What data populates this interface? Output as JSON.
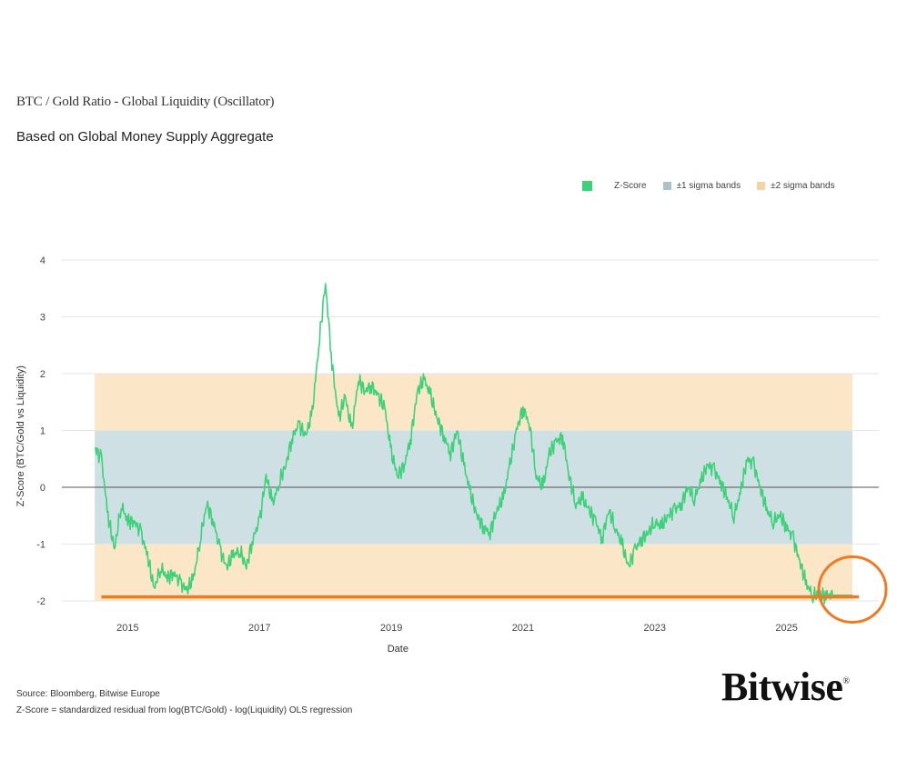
{
  "title": "BTC / Gold Ratio - Global Liquidity (Oscillator)",
  "subtitle": "Based on Global Money Supply Aggregate",
  "legend": {
    "zscore": "Z-Score",
    "sigma1": "±1 sigma bands",
    "sigma2": "±2 sigma bands"
  },
  "footer": {
    "source": "Source: Bloomberg, Bitwise Europe",
    "note": "Z-Score = standardized residual from log(BTC/Gold) - log(Liquidity) OLS regression"
  },
  "logo": {
    "text": "Bitwise",
    "mark": "®"
  },
  "colors": {
    "line": "#3dd17a",
    "band1": "#cfe0e4",
    "band2": "#fbe6c8",
    "highlight": "#f07a22",
    "grid": "#e6e6e6",
    "zero": "#555555"
  },
  "chart_data": {
    "type": "line",
    "title": "BTC / Gold Ratio - Global Liquidity (Oscillator)",
    "xlabel": "Date",
    "ylabel": "Z-Score (BTC/Gold vs Liquidity)",
    "ylim": [
      -2.2,
      4.2
    ],
    "xlim": [
      2014.0,
      2026.4
    ],
    "yticks": [
      4,
      3,
      2,
      1,
      0,
      -1,
      -2
    ],
    "xticks": [
      2015,
      2017,
      2019,
      2021,
      2023,
      2025
    ],
    "bands": {
      "sigma1": [
        -1,
        1
      ],
      "sigma2": [
        -2,
        2
      ],
      "x_range": [
        2014.5,
        2026.0
      ]
    },
    "highlight_line": {
      "y": -1.93,
      "x_range": [
        2014.6,
        2026.1
      ]
    },
    "highlight_circle": {
      "x": 2026.0,
      "y": -1.8
    },
    "series": [
      {
        "name": "Z-Score",
        "x": [
          2014.5,
          2014.6,
          2014.7,
          2014.8,
          2014.9,
          2015.0,
          2015.1,
          2015.2,
          2015.3,
          2015.4,
          2015.5,
          2015.6,
          2015.7,
          2015.8,
          2015.9,
          2016.0,
          2016.1,
          2016.2,
          2016.3,
          2016.4,
          2016.5,
          2016.6,
          2016.7,
          2016.8,
          2016.9,
          2017.0,
          2017.1,
          2017.2,
          2017.3,
          2017.4,
          2017.5,
          2017.6,
          2017.7,
          2017.8,
          2017.9,
          2018.0,
          2018.1,
          2018.2,
          2018.3,
          2018.4,
          2018.5,
          2018.6,
          2018.7,
          2018.8,
          2018.9,
          2019.0,
          2019.1,
          2019.2,
          2019.3,
          2019.4,
          2019.5,
          2019.6,
          2019.7,
          2019.8,
          2019.9,
          2020.0,
          2020.1,
          2020.2,
          2020.3,
          2020.4,
          2020.5,
          2020.6,
          2020.7,
          2020.8,
          2020.9,
          2021.0,
          2021.1,
          2021.2,
          2021.3,
          2021.4,
          2021.5,
          2021.6,
          2021.7,
          2021.8,
          2021.9,
          2022.0,
          2022.1,
          2022.2,
          2022.3,
          2022.4,
          2022.5,
          2022.6,
          2022.7,
          2022.8,
          2022.9,
          2023.0,
          2023.1,
          2023.2,
          2023.3,
          2023.4,
          2023.5,
          2023.6,
          2023.7,
          2023.8,
          2023.9,
          2024.0,
          2024.1,
          2024.2,
          2024.3,
          2024.4,
          2024.5,
          2024.6,
          2024.7,
          2024.8,
          2024.9,
          2025.0,
          2025.1,
          2025.2,
          2025.3,
          2025.4,
          2025.5,
          2025.6,
          2025.7,
          2025.8,
          2025.9,
          2026.0
        ],
        "values": [
          0.7,
          0.5,
          -0.5,
          -1.1,
          -0.3,
          -0.6,
          -0.6,
          -0.8,
          -1.2,
          -1.8,
          -1.4,
          -1.6,
          -1.5,
          -1.7,
          -1.8,
          -1.6,
          -0.9,
          -0.3,
          -0.6,
          -1.1,
          -1.4,
          -1.2,
          -1.1,
          -1.4,
          -0.9,
          -0.6,
          0.2,
          -0.3,
          0.1,
          0.4,
          0.9,
          1.1,
          0.9,
          1.3,
          2.5,
          3.6,
          2.2,
          1.2,
          1.6,
          1.0,
          1.9,
          1.7,
          1.8,
          1.6,
          1.4,
          0.6,
          0.2,
          0.4,
          0.9,
          1.7,
          1.9,
          1.6,
          1.2,
          0.9,
          0.6,
          1.0,
          0.4,
          -0.1,
          -0.5,
          -0.7,
          -0.8,
          -0.4,
          -0.2,
          0.4,
          1.0,
          1.4,
          1.1,
          0.2,
          0.0,
          0.6,
          0.8,
          0.9,
          0.2,
          -0.3,
          -0.2,
          -0.4,
          -0.6,
          -0.9,
          -0.4,
          -0.7,
          -1.0,
          -1.4,
          -1.1,
          -0.9,
          -0.8,
          -0.6,
          -0.7,
          -0.5,
          -0.4,
          -0.3,
          0.0,
          -0.2,
          0.1,
          0.4,
          0.3,
          0.1,
          -0.2,
          -0.5,
          -0.1,
          0.5,
          0.4,
          0.0,
          -0.4,
          -0.6,
          -0.5,
          -0.7,
          -0.9,
          -1.3,
          -1.7,
          -1.9,
          -1.9,
          -1.9,
          -1.9,
          -1.9,
          -1.9,
          -1.9
        ]
      }
    ]
  }
}
